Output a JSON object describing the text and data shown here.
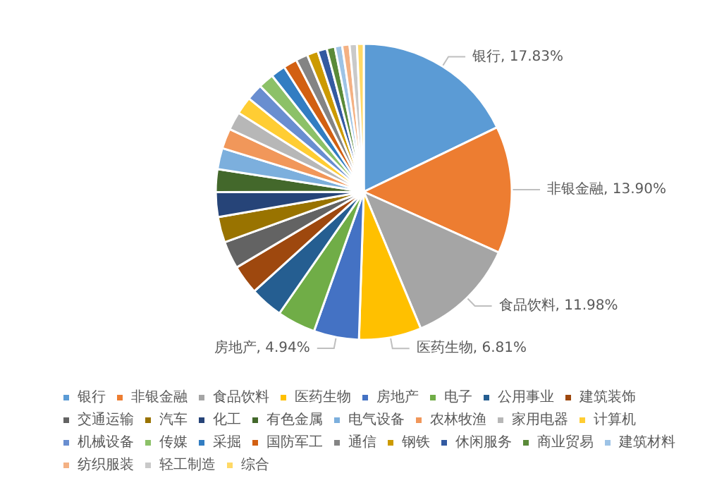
{
  "chart_data": {
    "type": "pie",
    "categories": [
      "银行",
      "非银金融",
      "食品饮料",
      "医药生物",
      "房地产",
      "电子",
      "公用事业",
      "建筑装饰",
      "交通运输",
      "汽车",
      "化工",
      "有色金属",
      "电气设备",
      "农林牧渔",
      "家用电器",
      "计算机",
      "机械设备",
      "传媒",
      "采掘",
      "国防军工",
      "通信",
      "钢铁",
      "休闲服务",
      "商业贸易",
      "建筑材料",
      "纺织服装",
      "轻工制造",
      "综合"
    ],
    "values": [
      17.83,
      13.9,
      11.98,
      6.81,
      4.94,
      4.2,
      3.6,
      3.2,
      3.0,
      2.8,
      2.7,
      2.5,
      2.3,
      2.2,
      2.0,
      1.9,
      1.8,
      1.7,
      1.6,
      1.5,
      1.3,
      1.2,
      1.0,
      0.9,
      0.8,
      0.8,
      0.8,
      0.74
    ],
    "colors": [
      "#5b9bd5",
      "#ed7d31",
      "#a5a5a5",
      "#ffc000",
      "#4472c4",
      "#70ad47",
      "#255e91",
      "#9e480e",
      "#636363",
      "#997300",
      "#264478",
      "#43682b",
      "#7cafdd",
      "#f1975a",
      "#b7b7b7",
      "#ffcd33",
      "#698ed0",
      "#8cc168",
      "#327dc2",
      "#d26012",
      "#848484",
      "#cc9a00",
      "#335aa1",
      "#5a8a39",
      "#9dc3e6",
      "#f4b183",
      "#c9c9c9",
      "#ffd966"
    ],
    "value_labels": [
      "银行, 17.83%",
      "非银金融, 13.90%",
      "食品饮料, 11.98%",
      "医药生物, 6.81%",
      "房地产, 4.94%",
      null,
      null,
      null,
      null,
      null,
      null,
      null,
      null,
      null,
      null,
      null,
      null,
      null,
      null,
      null,
      null,
      null,
      null,
      null,
      null,
      null,
      null,
      null
    ],
    "legend": "bottom"
  }
}
